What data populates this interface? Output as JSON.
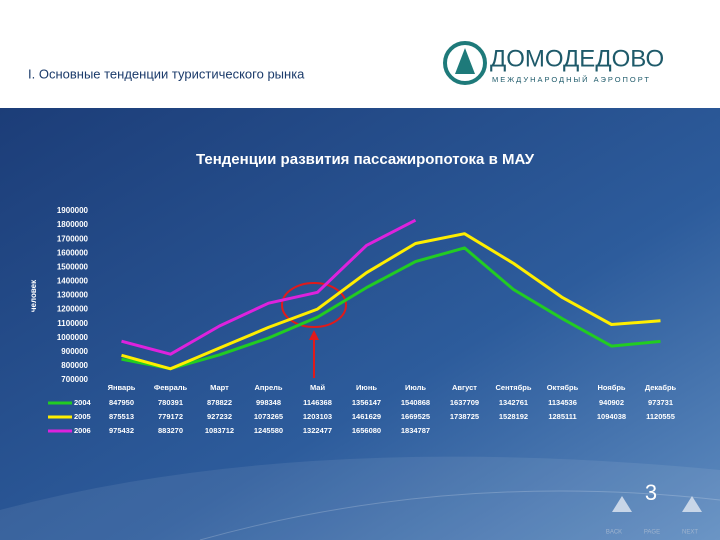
{
  "header": {
    "title": "I. Основные тенденции туристического рынка",
    "logo_name": "ДОМОДЕДОВО",
    "logo_subtitle": "МЕЖДУНАРОДНЫЙ АЭРОПОРТ"
  },
  "chart_data": {
    "type": "line",
    "title": "Тенденции развития пассажиропотока в МАУ",
    "y_label": "человек",
    "categories": [
      "Январь",
      "Февраль",
      "Март",
      "Апрель",
      "Май",
      "Июнь",
      "Июль",
      "Август",
      "Сентябрь",
      "Октябрь",
      "Ноябрь",
      "Декабрь"
    ],
    "series": [
      {
        "name": "2004",
        "color": "#22cc22",
        "values": [
          847950,
          780391,
          878822,
          998348,
          1146368,
          1356147,
          1540868,
          1637709,
          1342761,
          1134536,
          940902,
          973731
        ]
      },
      {
        "name": "2005",
        "color": "#ffee00",
        "values": [
          875513,
          779172,
          927232,
          1073265,
          1203103,
          1461629,
          1669525,
          1738725,
          1528192,
          1285111,
          1094038,
          1120555
        ]
      },
      {
        "name": "2006",
        "color": "#dd22dd",
        "values": [
          975432,
          883270,
          1083712,
          1245580,
          1322477,
          1656080,
          1834787,
          null,
          null,
          null,
          null,
          null
        ]
      }
    ],
    "ylim": [
      700000,
      1900000
    ],
    "yticks": [
      700000,
      800000,
      900000,
      1000000,
      1100000,
      1200000,
      1300000,
      1400000,
      1500000,
      1600000,
      1700000,
      1800000,
      1900000
    ],
    "grid": false
  },
  "footer": {
    "page": 3,
    "back": "BACK",
    "page_label": "PAGE",
    "next": "NEXT"
  }
}
